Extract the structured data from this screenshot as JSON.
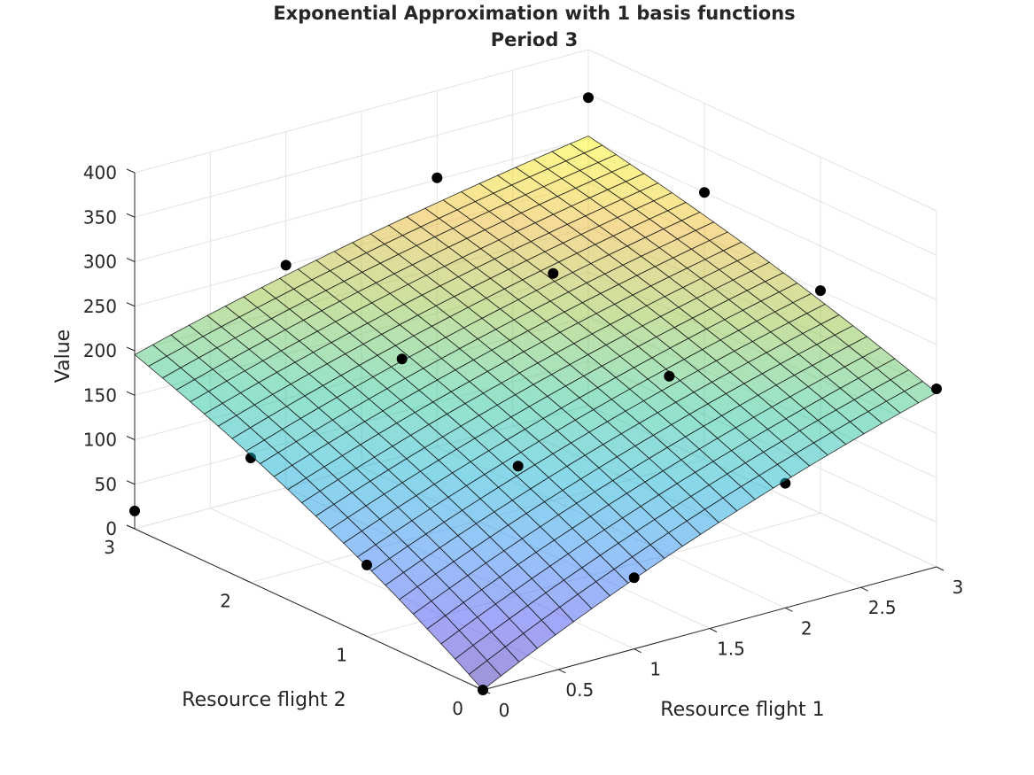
{
  "chart_data": {
    "type": "surface",
    "title": [
      "Exponential Approximation with 1 basis functions",
      "Period 3"
    ],
    "xlabel": "Resource flight 1",
    "ylabel": "Resource flight 2",
    "zlabel": "Value",
    "xlim": [
      0,
      3
    ],
    "ylim": [
      0,
      3
    ],
    "zlim": [
      0,
      400
    ],
    "x_ticks": [
      "0",
      "0.5",
      "1",
      "1.5",
      "2",
      "2.5",
      "3"
    ],
    "y_ticks": [
      "0",
      "1",
      "2",
      "3"
    ],
    "z_ticks": [
      "0",
      "50",
      "100",
      "150",
      "200",
      "250",
      "300",
      "350",
      "400"
    ],
    "grid": true,
    "surface": {
      "description_model": "value = a - b*exp(-c*(x+y))",
      "a": 433.5,
      "b": 433.5,
      "c": 0.2,
      "grid_x": 25,
      "grid_y": 25,
      "colormap": "parula",
      "face_alpha": 0.5
    },
    "points": [
      {
        "x": 0,
        "y": 0,
        "z": 0
      },
      {
        "x": 1,
        "y": 0,
        "z": 80
      },
      {
        "x": 2,
        "y": 0,
        "z": 140
      },
      {
        "x": 3,
        "y": 0,
        "z": 200
      },
      {
        "x": 0,
        "y": 1,
        "z": 80
      },
      {
        "x": 1,
        "y": 1,
        "z": 145
      },
      {
        "x": 2,
        "y": 1,
        "z": 200
      },
      {
        "x": 3,
        "y": 1,
        "z": 250
      },
      {
        "x": 0,
        "y": 2,
        "z": 140
      },
      {
        "x": 1,
        "y": 2,
        "z": 205
      },
      {
        "x": 2,
        "y": 2,
        "z": 255
      },
      {
        "x": 3,
        "y": 2,
        "z": 300
      },
      {
        "x": 0,
        "y": 3,
        "z": 20
      },
      {
        "x": 1,
        "y": 3,
        "z": 250
      },
      {
        "x": 2,
        "y": 3,
        "z": 302
      },
      {
        "x": 3,
        "y": 3,
        "z": 346
      }
    ]
  }
}
